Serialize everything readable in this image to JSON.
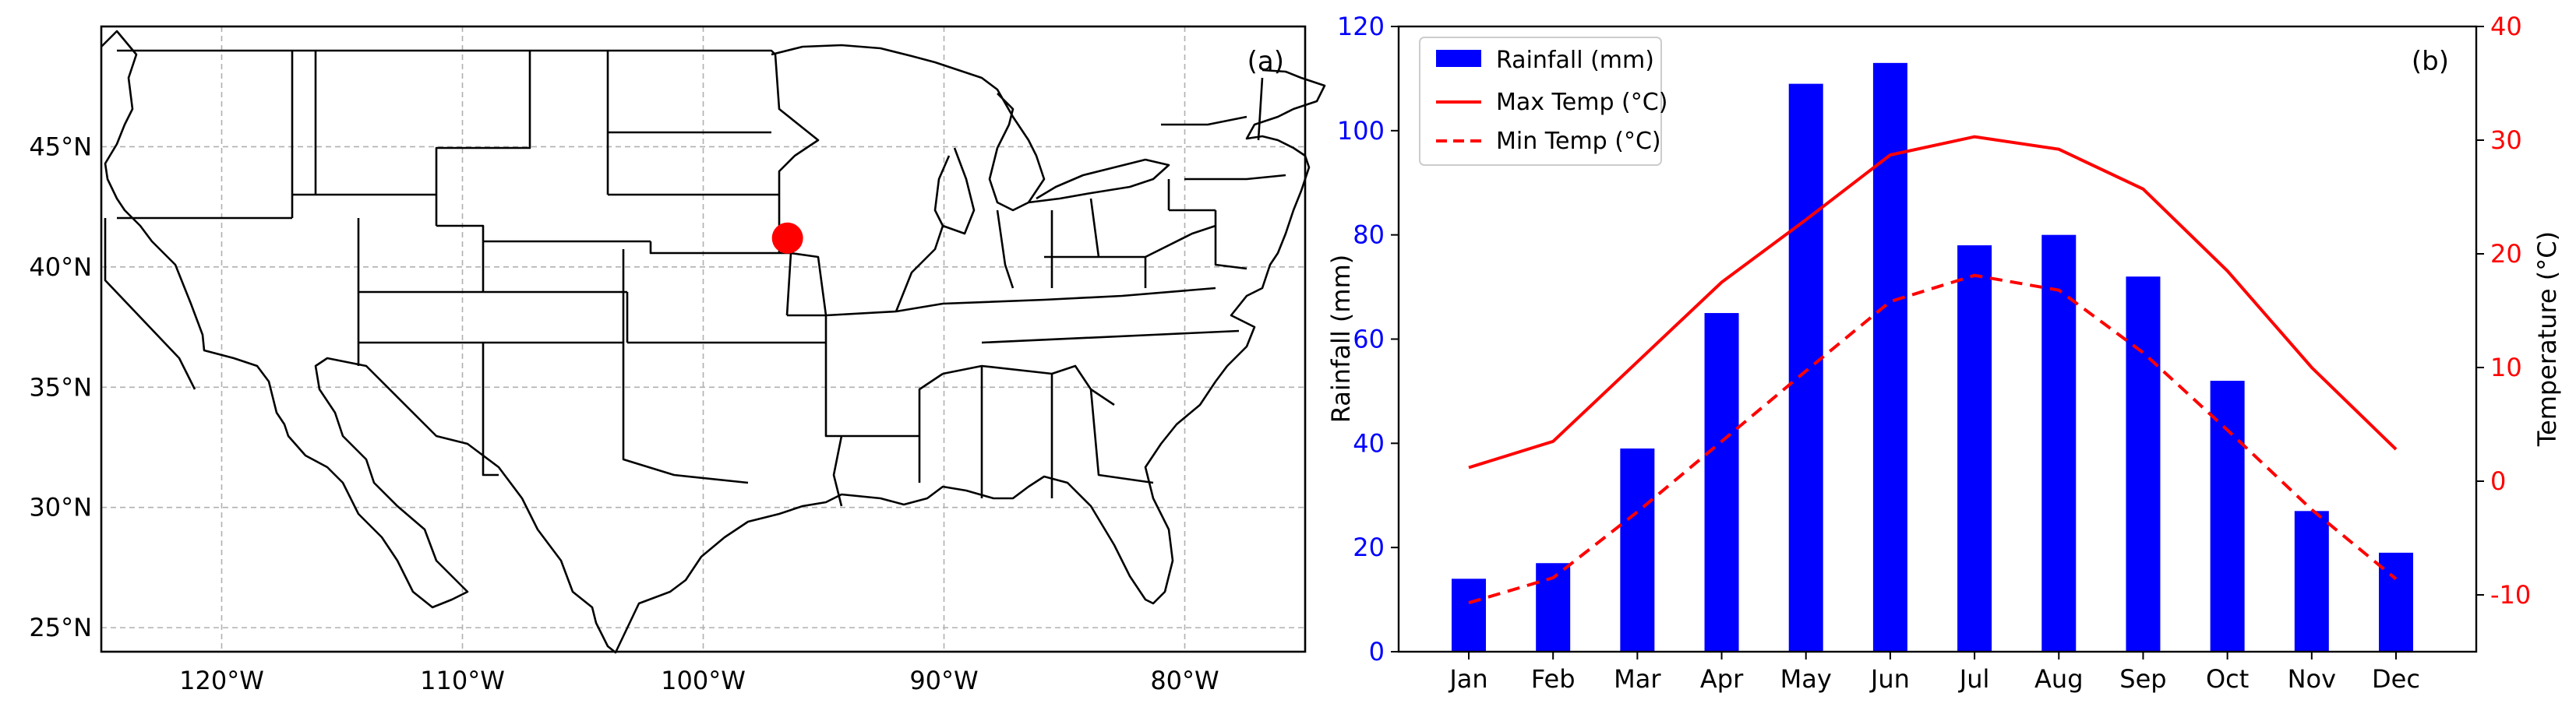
{
  "colors": {
    "rain": "#0000ff",
    "temp": "#ff0000",
    "marker": "#ff0000"
  },
  "map": {
    "panel_label": "(a)",
    "lon_range": [
      -125,
      -75
    ],
    "lat_range": [
      24,
      50
    ],
    "lon_ticks": [
      {
        "value": -120,
        "label": "120°W"
      },
      {
        "value": -110,
        "label": "110°W"
      },
      {
        "value": -100,
        "label": "100°W"
      },
      {
        "value": -90,
        "label": "90°W"
      },
      {
        "value": -80,
        "label": "80°W"
      }
    ],
    "lat_ticks": [
      {
        "value": 45,
        "label": "45°N"
      },
      {
        "value": 40,
        "label": "40°N"
      },
      {
        "value": 35,
        "label": "35°N"
      },
      {
        "value": 30,
        "label": "30°N"
      },
      {
        "value": 25,
        "label": "25°N"
      }
    ],
    "marker": {
      "lon": -96.5,
      "lat": 41.2
    }
  },
  "chart_data": {
    "type": "bar",
    "panel_label": "(b)",
    "categories": [
      "Jan",
      "Feb",
      "Mar",
      "Apr",
      "May",
      "Jun",
      "Jul",
      "Aug",
      "Sep",
      "Oct",
      "Nov",
      "Dec"
    ],
    "ylabel": "Rainfall (mm)",
    "ylim": [
      0,
      120
    ],
    "yticks": [
      0,
      20,
      40,
      60,
      80,
      100,
      120
    ],
    "y2label": "Temperature (°C)",
    "y2lim": [
      -15,
      40
    ],
    "y2ticks": [
      -10,
      0,
      10,
      20,
      30,
      40
    ],
    "series": [
      {
        "name": "Rainfall (mm)",
        "type": "bar",
        "axis": "left",
        "values": [
          14,
          17,
          39,
          65,
          109,
          113,
          78,
          80,
          72,
          52,
          27,
          19
        ]
      },
      {
        "name": "Max Temp (°C)",
        "type": "line",
        "style": "solid",
        "axis": "right",
        "values": [
          1.2,
          3.5,
          10.5,
          17.5,
          23,
          28.7,
          30.3,
          29.2,
          25.7,
          18.5,
          10,
          2.8
        ]
      },
      {
        "name": "Min Temp (°C)",
        "type": "line",
        "style": "dashed",
        "axis": "right",
        "values": [
          -10.7,
          -8.5,
          -2.7,
          3.5,
          9.7,
          15.8,
          18.1,
          16.8,
          11.3,
          4.5,
          -2.5,
          -8.6
        ]
      }
    ],
    "legend_position": "top-left"
  }
}
